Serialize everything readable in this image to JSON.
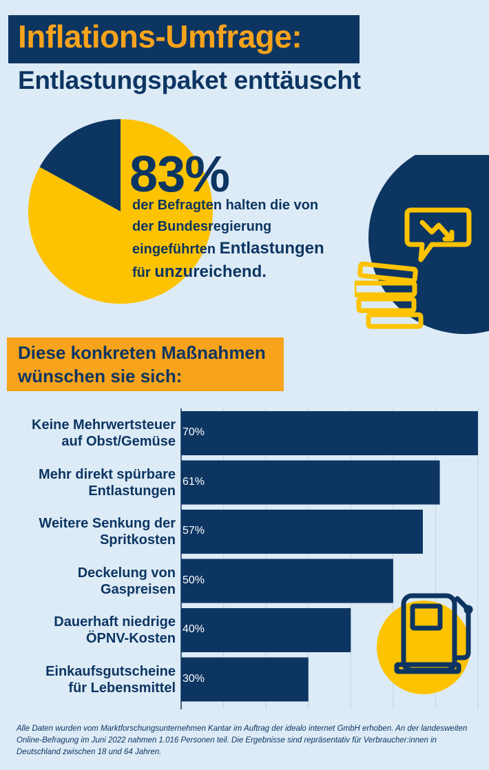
{
  "header": {
    "title": "Inflations-Umfrage:",
    "subtitle": "Entlastungspaket enttäuscht"
  },
  "headline_stat": {
    "percent_label": "83%",
    "percent_value": 83,
    "line1": "der Befragten halten die von",
    "line2": "der Bundesregierung",
    "line3_prefix": "eingeführten ",
    "line3_emphasis": "Entlastungen",
    "line4_prefix": "für ",
    "line4_emphasis": "unzureichend."
  },
  "section": {
    "line1": "Diese konkreten Maßnahmen",
    "line2": "wünschen sie sich:"
  },
  "colors": {
    "navy": "#0d3562",
    "yellow": "#fdc300",
    "orange": "#f7a31c",
    "background": "#dcebf6"
  },
  "icons": [
    "chart-down-speech-bubble-icon",
    "coin-stack-icon",
    "fuel-pump-icon"
  ],
  "chart_data": [
    {
      "type": "pie",
      "values": [
        83,
        17
      ],
      "colors": [
        "#fdc300",
        "#0d3562"
      ]
    },
    {
      "type": "bar",
      "orientation": "horizontal",
      "categories": [
        [
          "Keine Mehrwertsteuer",
          "auf Obst/Gemüse"
        ],
        [
          "Mehr direkt spürbare",
          "Entlastungen"
        ],
        [
          "Weitere Senkung der",
          "Spritkosten"
        ],
        [
          "Deckelung von",
          "Gaspreisen"
        ],
        [
          "Dauerhaft niedrige",
          "ÖPNV-Kosten"
        ],
        [
          "Einkaufsgutscheine",
          "für Lebensmittel"
        ]
      ],
      "values": [
        70,
        61,
        57,
        50,
        40,
        30
      ],
      "value_labels": [
        "70%",
        "61%",
        "57%",
        "50%",
        "40%",
        "30%"
      ],
      "xlim": [
        0,
        70
      ],
      "grid": true
    }
  ],
  "footnote": "Alle Daten wurden vom Marktforschungsunternehmen Kantar im Auftrag der idealo internet GmbH erhoben. An der landesweiten Online-Befragung im Juni 2022 nahmen 1.016 Personen teil. Die Ergebnisse sind repräsentativ für Verbraucher:innen in Deutschland zwischen 18 und 64 Jahren."
}
